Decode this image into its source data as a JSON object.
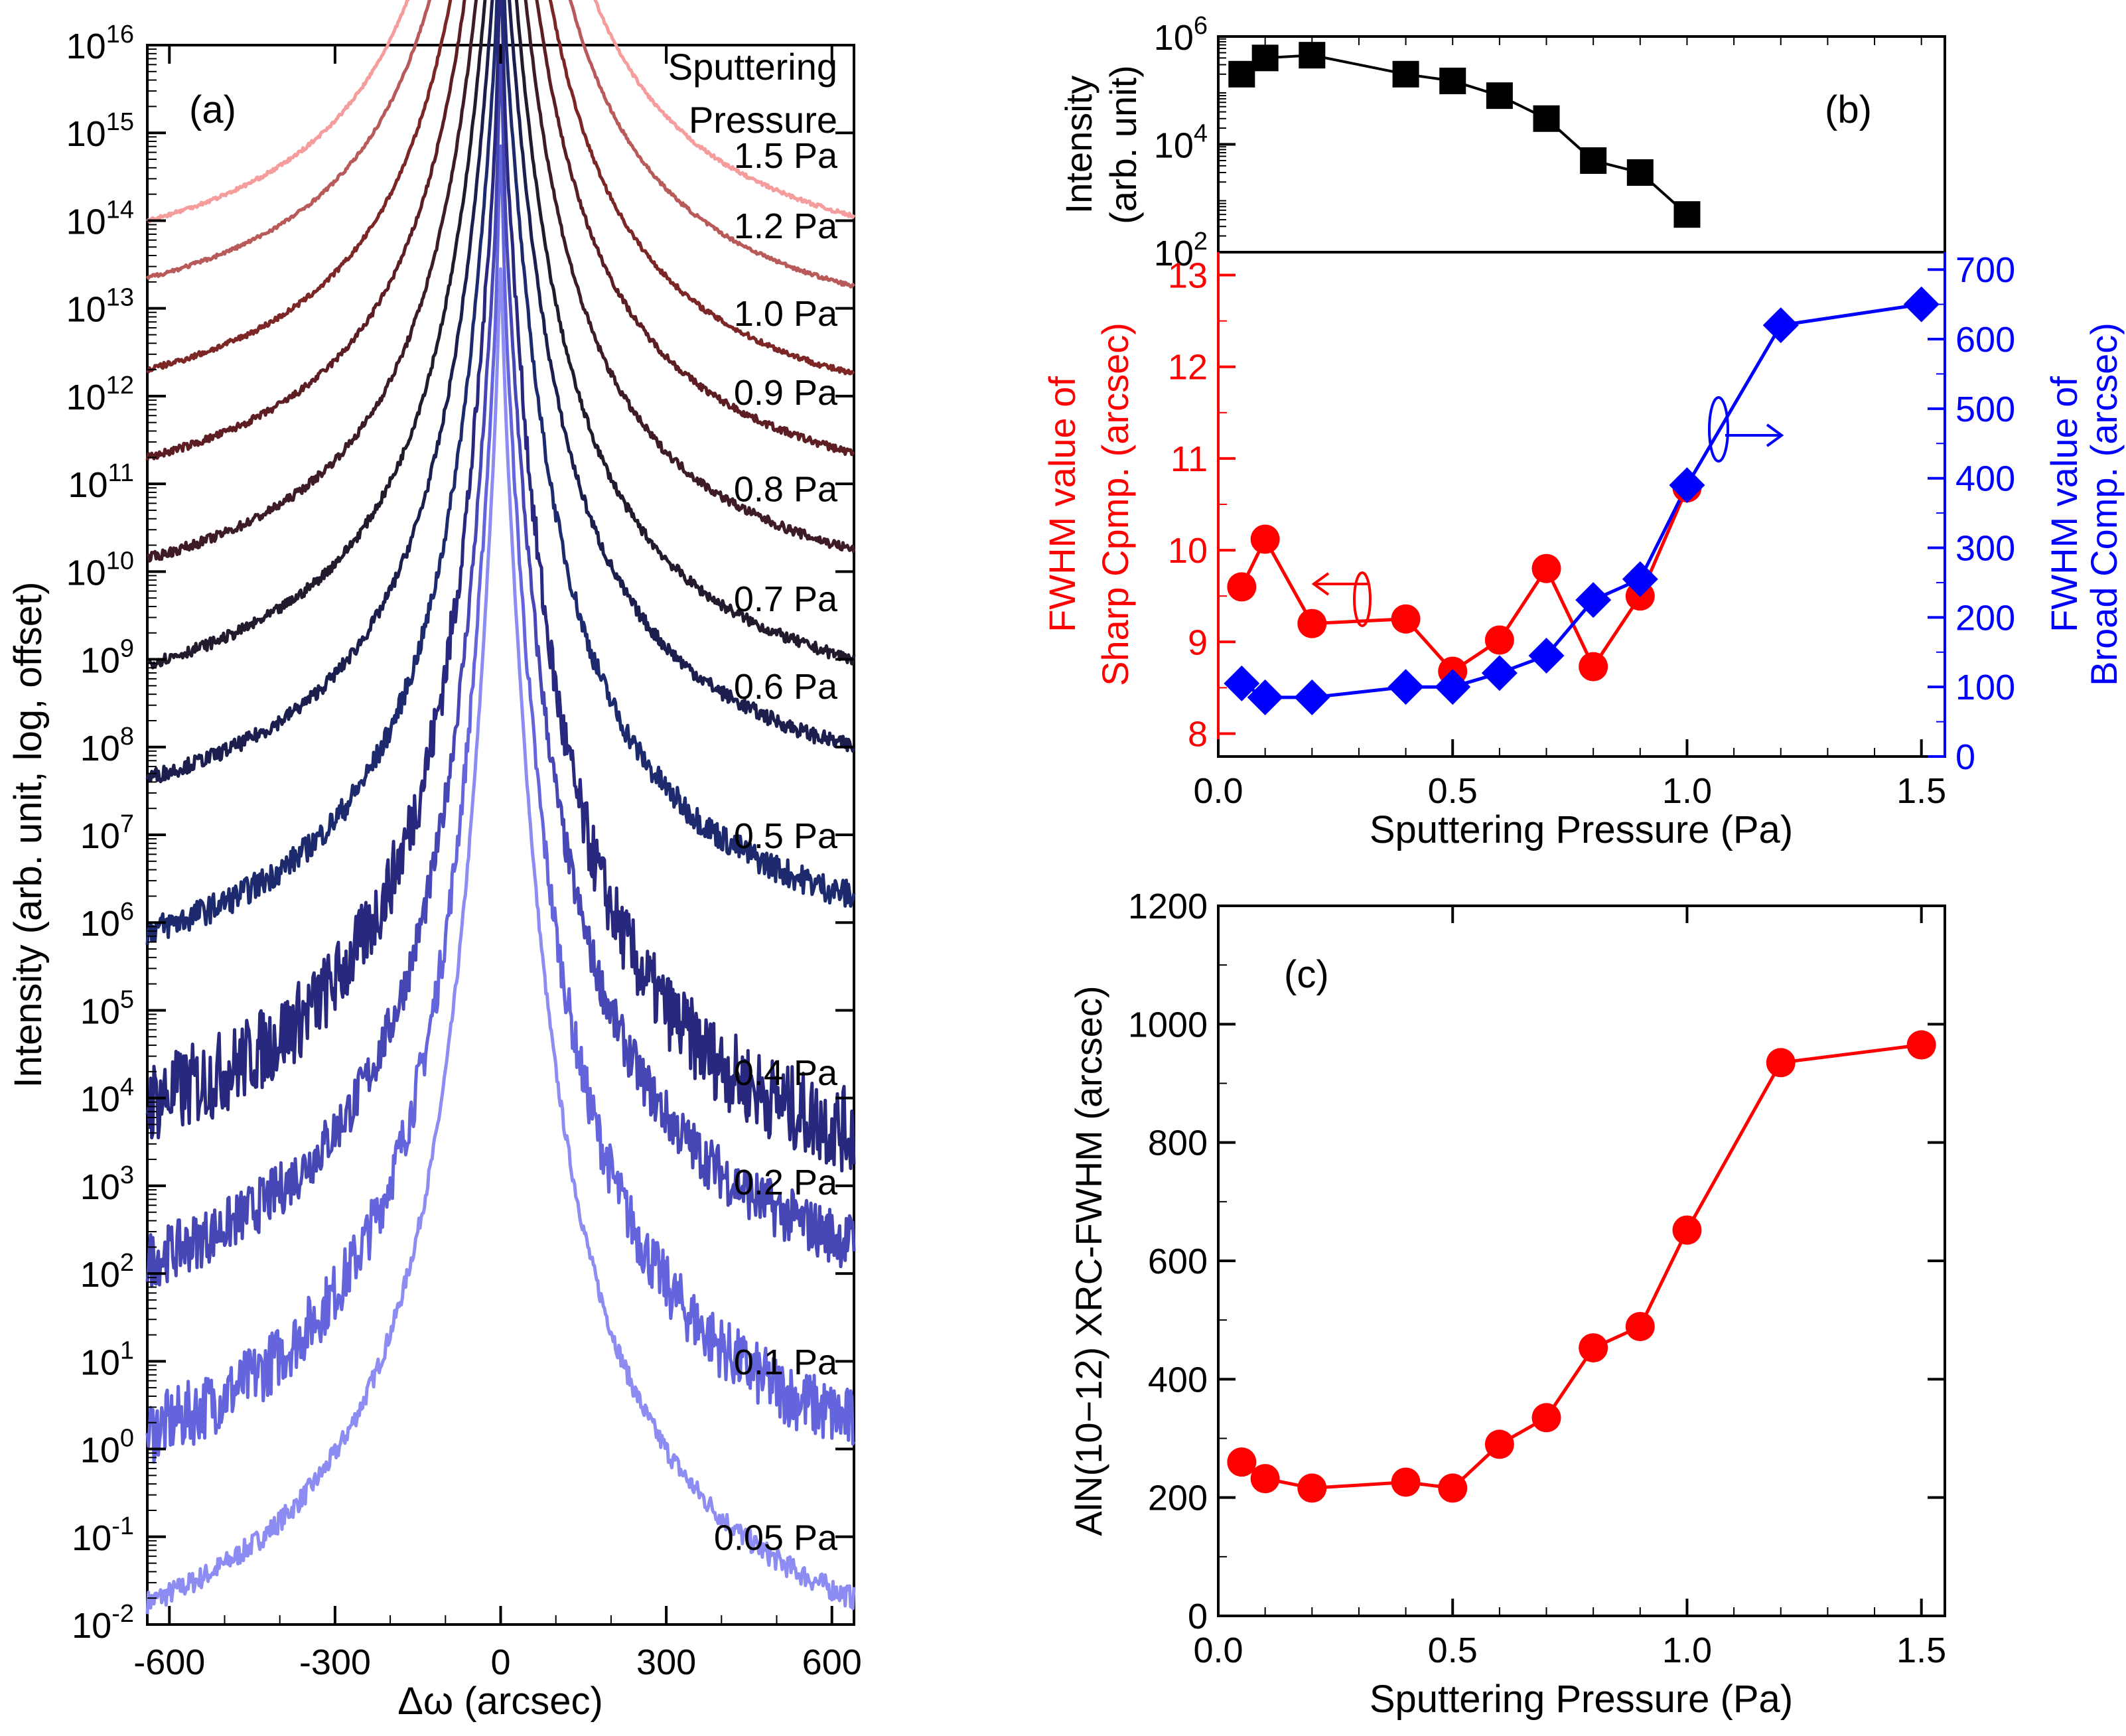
{
  "chart_data": [
    {
      "id": "a",
      "type": "line",
      "panel_label": "(a)",
      "xlabel": "Δω (arcsec)",
      "ylabel": "Intensity (arb. unit, log, offset)",
      "xlim": [
        -640,
        640
      ],
      "xticks": [
        -600,
        -300,
        0,
        300,
        600
      ],
      "ylim_log10": [
        -2,
        16
      ],
      "ytick_exponents": [
        -2,
        -1,
        0,
        1,
        2,
        3,
        4,
        5,
        6,
        7,
        8,
        9,
        10,
        11,
        12,
        13,
        14,
        15,
        16
      ],
      "legend_title_lines": [
        "Sputtering",
        "Pressure"
      ],
      "series": [
        {
          "name": "0.05 Pa",
          "color": "#8C8CF2",
          "peak_log10": 14.25,
          "center_log10": -0.75,
          "sharp_height": 0.6,
          "wing_left_log10": -1.75,
          "wing_right_log10": -1.7,
          "noise": 0.12
        },
        {
          "name": "0.1 Pa",
          "color": "#6464DC",
          "peak_log10": 15.2,
          "center_log10": 0.25,
          "sharp_height": 1.0,
          "wing_left_log10": 0.2,
          "wing_right_log10": 0.3,
          "noise": 0.35
        },
        {
          "name": "0.2 Pa",
          "color": "#4646B4",
          "peak_log10": 16.2,
          "center_log10": 1.25,
          "sharp_height": 1.0,
          "wing_left_log10": 2.15,
          "wing_right_log10": 2.35,
          "noise": 0.3
        },
        {
          "name": "0.4 Pa",
          "color": "#28287E",
          "peak_log10": 17.2,
          "center_log10": 2.25,
          "sharp_height": 1.0,
          "wing_left_log10": 3.95,
          "wing_right_log10": 3.6,
          "noise": 0.45
        },
        {
          "name": "0.5 Pa",
          "color": "#1E2A6E",
          "peak_log10": 18.2,
          "center_log10": 3.25,
          "sharp_height": 0.9,
          "wing_left_log10": 5.9,
          "wing_right_log10": 6.3,
          "noise": 0.15
        },
        {
          "name": "0.6 Pa",
          "color": "#1C1E4E",
          "peak_log10": 19.2,
          "center_log10": 4.2,
          "sharp_height": 0.6,
          "wing_left_log10": 7.65,
          "wing_right_log10": 8.0,
          "noise": 0.08
        },
        {
          "name": "0.7 Pa",
          "color": "#241A2E",
          "peak_log10": 20.2,
          "center_log10": 5.2,
          "sharp_height": 0.5,
          "wing_left_log10": 8.95,
          "wing_right_log10": 9.0,
          "noise": 0.06
        },
        {
          "name": "0.8 Pa",
          "color": "#3E1C26",
          "peak_log10": 21.2,
          "center_log10": 6.2,
          "sharp_height": 0.4,
          "wing_left_log10": 10.15,
          "wing_right_log10": 10.25,
          "noise": 0.05
        },
        {
          "name": "0.9 Pa",
          "color": "#5C1E22",
          "peak_log10": 22.2,
          "center_log10": 7.2,
          "sharp_height": 0.15,
          "wing_left_log10": 11.3,
          "wing_right_log10": 11.35,
          "noise": 0.04
        },
        {
          "name": "1.0 Pa",
          "color": "#7C2626",
          "peak_log10": 23.2,
          "center_log10": 8.2,
          "sharp_height": 0.15,
          "wing_left_log10": 12.3,
          "wing_right_log10": 12.25,
          "noise": 0.03
        },
        {
          "name": "1.2 Pa",
          "color": "#B85A5A",
          "peak_log10": 24.2,
          "center_log10": 9.2,
          "sharp_height": 0.03,
          "wing_left_log10": 13.35,
          "wing_right_log10": 13.25,
          "noise": 0.02
        },
        {
          "name": "1.5 Pa",
          "color": "#F59C9C",
          "peak_log10": 25.2,
          "center_log10": 10.2,
          "sharp_height": 0.0,
          "wing_left_log10": 14.0,
          "wing_right_log10": 14.05,
          "noise": 0.02
        }
      ]
    },
    {
      "id": "b_top",
      "type": "line",
      "panel_label": "(b)",
      "ylabel_lines": [
        "Intensity",
        "(arb. unit)"
      ],
      "ylim_log10": [
        2,
        6
      ],
      "ytick_exponents": [
        2,
        4,
        6
      ],
      "x": [
        0.05,
        0.1,
        0.2,
        0.4,
        0.5,
        0.6,
        0.7,
        0.8,
        0.9,
        1.0
      ],
      "y": [
        200000,
        400000,
        450000,
        200000,
        150000,
        80000,
        30000,
        5000,
        3000,
        500
      ],
      "color": "#000000"
    },
    {
      "id": "b_bottom",
      "type": "line",
      "xlabel": "Sputtering Pressure (Pa)",
      "xlim": [
        0,
        1.55
      ],
      "xticks": [
        "0.0",
        "0.5",
        "1.0",
        "1.5"
      ],
      "ylabel_left_lines": [
        "FWHM value of",
        "Sharp Cpmp. (arcsec)"
      ],
      "ylabel_right_lines": [
        "FWHM value of",
        "Broad Comp. (arcsec)"
      ],
      "ylim_left": [
        7.75,
        13.25
      ],
      "yticks_left": [
        8,
        9,
        10,
        11,
        12,
        13
      ],
      "ylim_right": [
        0,
        725
      ],
      "yticks_right": [
        0,
        100,
        200,
        300,
        400,
        500,
        600,
        700
      ],
      "series": [
        {
          "name": "Sharp component FWHM",
          "axis": "left",
          "color": "#FF0000",
          "marker": "circle",
          "x": [
            0.05,
            0.1,
            0.2,
            0.4,
            0.5,
            0.6,
            0.7,
            0.8,
            0.9,
            1.0
          ],
          "y": [
            9.6,
            10.12,
            9.2,
            9.25,
            8.68,
            9.02,
            9.8,
            8.73,
            9.5,
            10.68
          ]
        },
        {
          "name": "Broad component FWHM",
          "axis": "right",
          "color": "#0000FF",
          "marker": "diamond",
          "x": [
            0.05,
            0.1,
            0.2,
            0.4,
            0.5,
            0.6,
            0.7,
            0.8,
            0.9,
            1.0,
            1.2,
            1.5
          ],
          "y": [
            105,
            85,
            85,
            100,
            100,
            120,
            145,
            225,
            255,
            390,
            620,
            650
          ]
        }
      ]
    },
    {
      "id": "c",
      "type": "line",
      "panel_label": "(c)",
      "xlabel": "Sputtering Pressure (Pa)",
      "ylabel": "AlN(10−12) XRC-FWHM (arcsec)",
      "xlim": [
        0,
        1.55
      ],
      "xticks": [
        "0.0",
        "0.5",
        "1.0",
        "1.5"
      ],
      "ylim": [
        0,
        1200
      ],
      "yticks": [
        0,
        200,
        400,
        600,
        800,
        1000,
        1200
      ],
      "color": "#FF0000",
      "marker": "circle",
      "x": [
        0.05,
        0.1,
        0.2,
        0.4,
        0.5,
        0.6,
        0.7,
        0.8,
        0.9,
        1.0,
        1.2,
        1.5
      ],
      "y": [
        260,
        232,
        216,
        226,
        216,
        290,
        335,
        453,
        489,
        652,
        935,
        965
      ]
    }
  ]
}
